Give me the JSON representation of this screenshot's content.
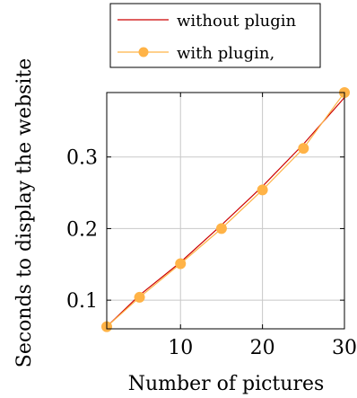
{
  "chart_data": {
    "type": "line",
    "title": "",
    "xlabel": "Number of pictures",
    "ylabel": "Seconds to display the website",
    "xlim": [
      1,
      30
    ],
    "ylim": [
      0.06,
      0.39
    ],
    "xticks": [
      10,
      20,
      30
    ],
    "xtick_labels": [
      "10",
      "20",
      "30"
    ],
    "yticks": [
      0.1,
      0.2,
      0.3
    ],
    "ytick_labels": [
      "0.1",
      "0.2",
      "0.3"
    ],
    "grid": true,
    "legend_position": "top-center",
    "series": [
      {
        "name": "without plugin",
        "color": "#cc0000",
        "marker": "none",
        "x": [
          1,
          5,
          10,
          15,
          20,
          25,
          30
        ],
        "y": [
          0.063,
          0.107,
          0.153,
          0.205,
          0.259,
          0.318,
          0.383
        ]
      },
      {
        "name": "with plugin,",
        "color": "#ffb347",
        "marker": "circle",
        "x": [
          1,
          5,
          10,
          15,
          20,
          25,
          30
        ],
        "y": [
          0.063,
          0.104,
          0.151,
          0.2,
          0.254,
          0.312,
          0.39
        ]
      }
    ]
  }
}
